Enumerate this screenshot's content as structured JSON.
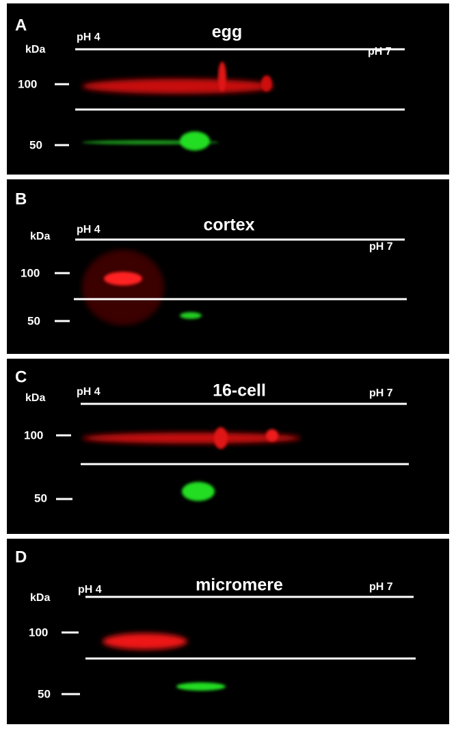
{
  "panels": [
    {
      "label": "A",
      "title": "egg",
      "units": "kDa",
      "ph_left": "pH 4",
      "ph_right": "pH 7",
      "markers": [
        "100",
        "50"
      ]
    },
    {
      "label": "B",
      "title": "cortex",
      "units": "kDa",
      "ph_left": "pH 4",
      "ph_right": "pH 7",
      "markers": [
        "100",
        "50"
      ]
    },
    {
      "label": "C",
      "title": "16-cell",
      "units": "kDa",
      "ph_left": "pH 4",
      "ph_right": "pH 7",
      "markers": [
        "100",
        "50"
      ]
    },
    {
      "label": "D",
      "title": "micromere",
      "units": "kDa",
      "ph_left": "pH 4",
      "ph_right": "pH 7",
      "markers": [
        "100",
        "50"
      ]
    }
  ]
}
